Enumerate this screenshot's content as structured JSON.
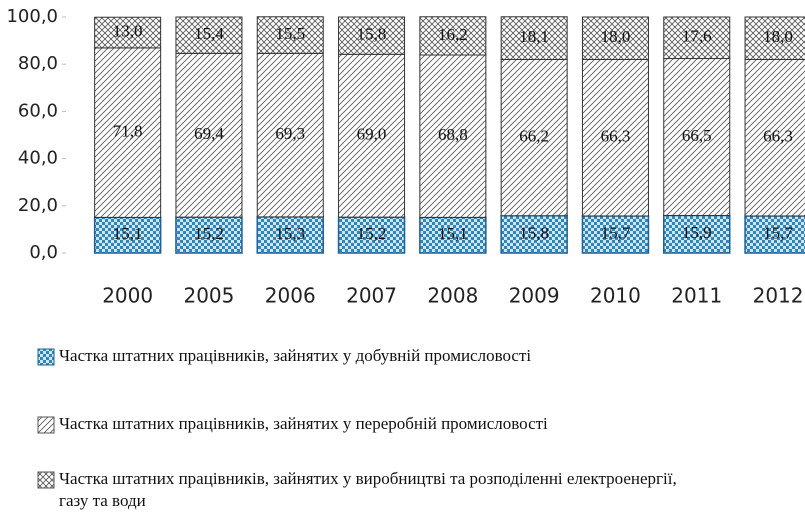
{
  "chart_data": {
    "type": "stacked-bar",
    "categories": [
      "2000",
      "2005",
      "2006",
      "2007",
      "2008",
      "2009",
      "2010",
      "2011",
      "2012"
    ],
    "ylim": [
      0,
      100
    ],
    "yticks": [
      {
        "value": 0,
        "label": "0,0"
      },
      {
        "value": 20,
        "label": "20,0"
      },
      {
        "value": 40,
        "label": "40,0"
      },
      {
        "value": 60,
        "label": "60,0"
      },
      {
        "value": 80,
        "label": "80,0"
      },
      {
        "value": 100,
        "label": "100,0"
      }
    ],
    "series": [
      {
        "name": "Частка штатних працівників, зайнятих у добувній промисловості",
        "color": "#2f86b8",
        "hatch": "dots",
        "values": [
          15.1,
          15.2,
          15.3,
          15.2,
          15.1,
          15.8,
          15.7,
          15.9,
          15.7
        ],
        "value_labels": [
          "15,1",
          "15,2",
          "15,3",
          "15,2",
          "15,1",
          "15,8",
          "15,7",
          "15,9",
          "15,7"
        ]
      },
      {
        "name": "Частка штатних працівників, зайнятих у переробній промисловості",
        "color": "#555555",
        "hatch": "diagonal",
        "values": [
          71.8,
          69.4,
          69.3,
          69.0,
          68.8,
          66.2,
          66.3,
          66.5,
          66.3
        ],
        "value_labels": [
          "71,8",
          "69,4",
          "69,3",
          "69,0",
          "68,8",
          "66,2",
          "66,3",
          "66,5",
          "66,3"
        ]
      },
      {
        "name": "Частка штатних працівників, зайнятих у виробництві та розподіленні електроенергії, газу та води",
        "color": "#555555",
        "hatch": "cross",
        "values": [
          13.0,
          15.4,
          15.5,
          15.8,
          16.2,
          18.1,
          18.0,
          17.6,
          18.0
        ],
        "value_labels": [
          "13,0",
          "15,4",
          "15,5",
          "15,8",
          "16,2",
          "18,1",
          "18,0",
          "17,6",
          "18,0"
        ]
      }
    ]
  }
}
